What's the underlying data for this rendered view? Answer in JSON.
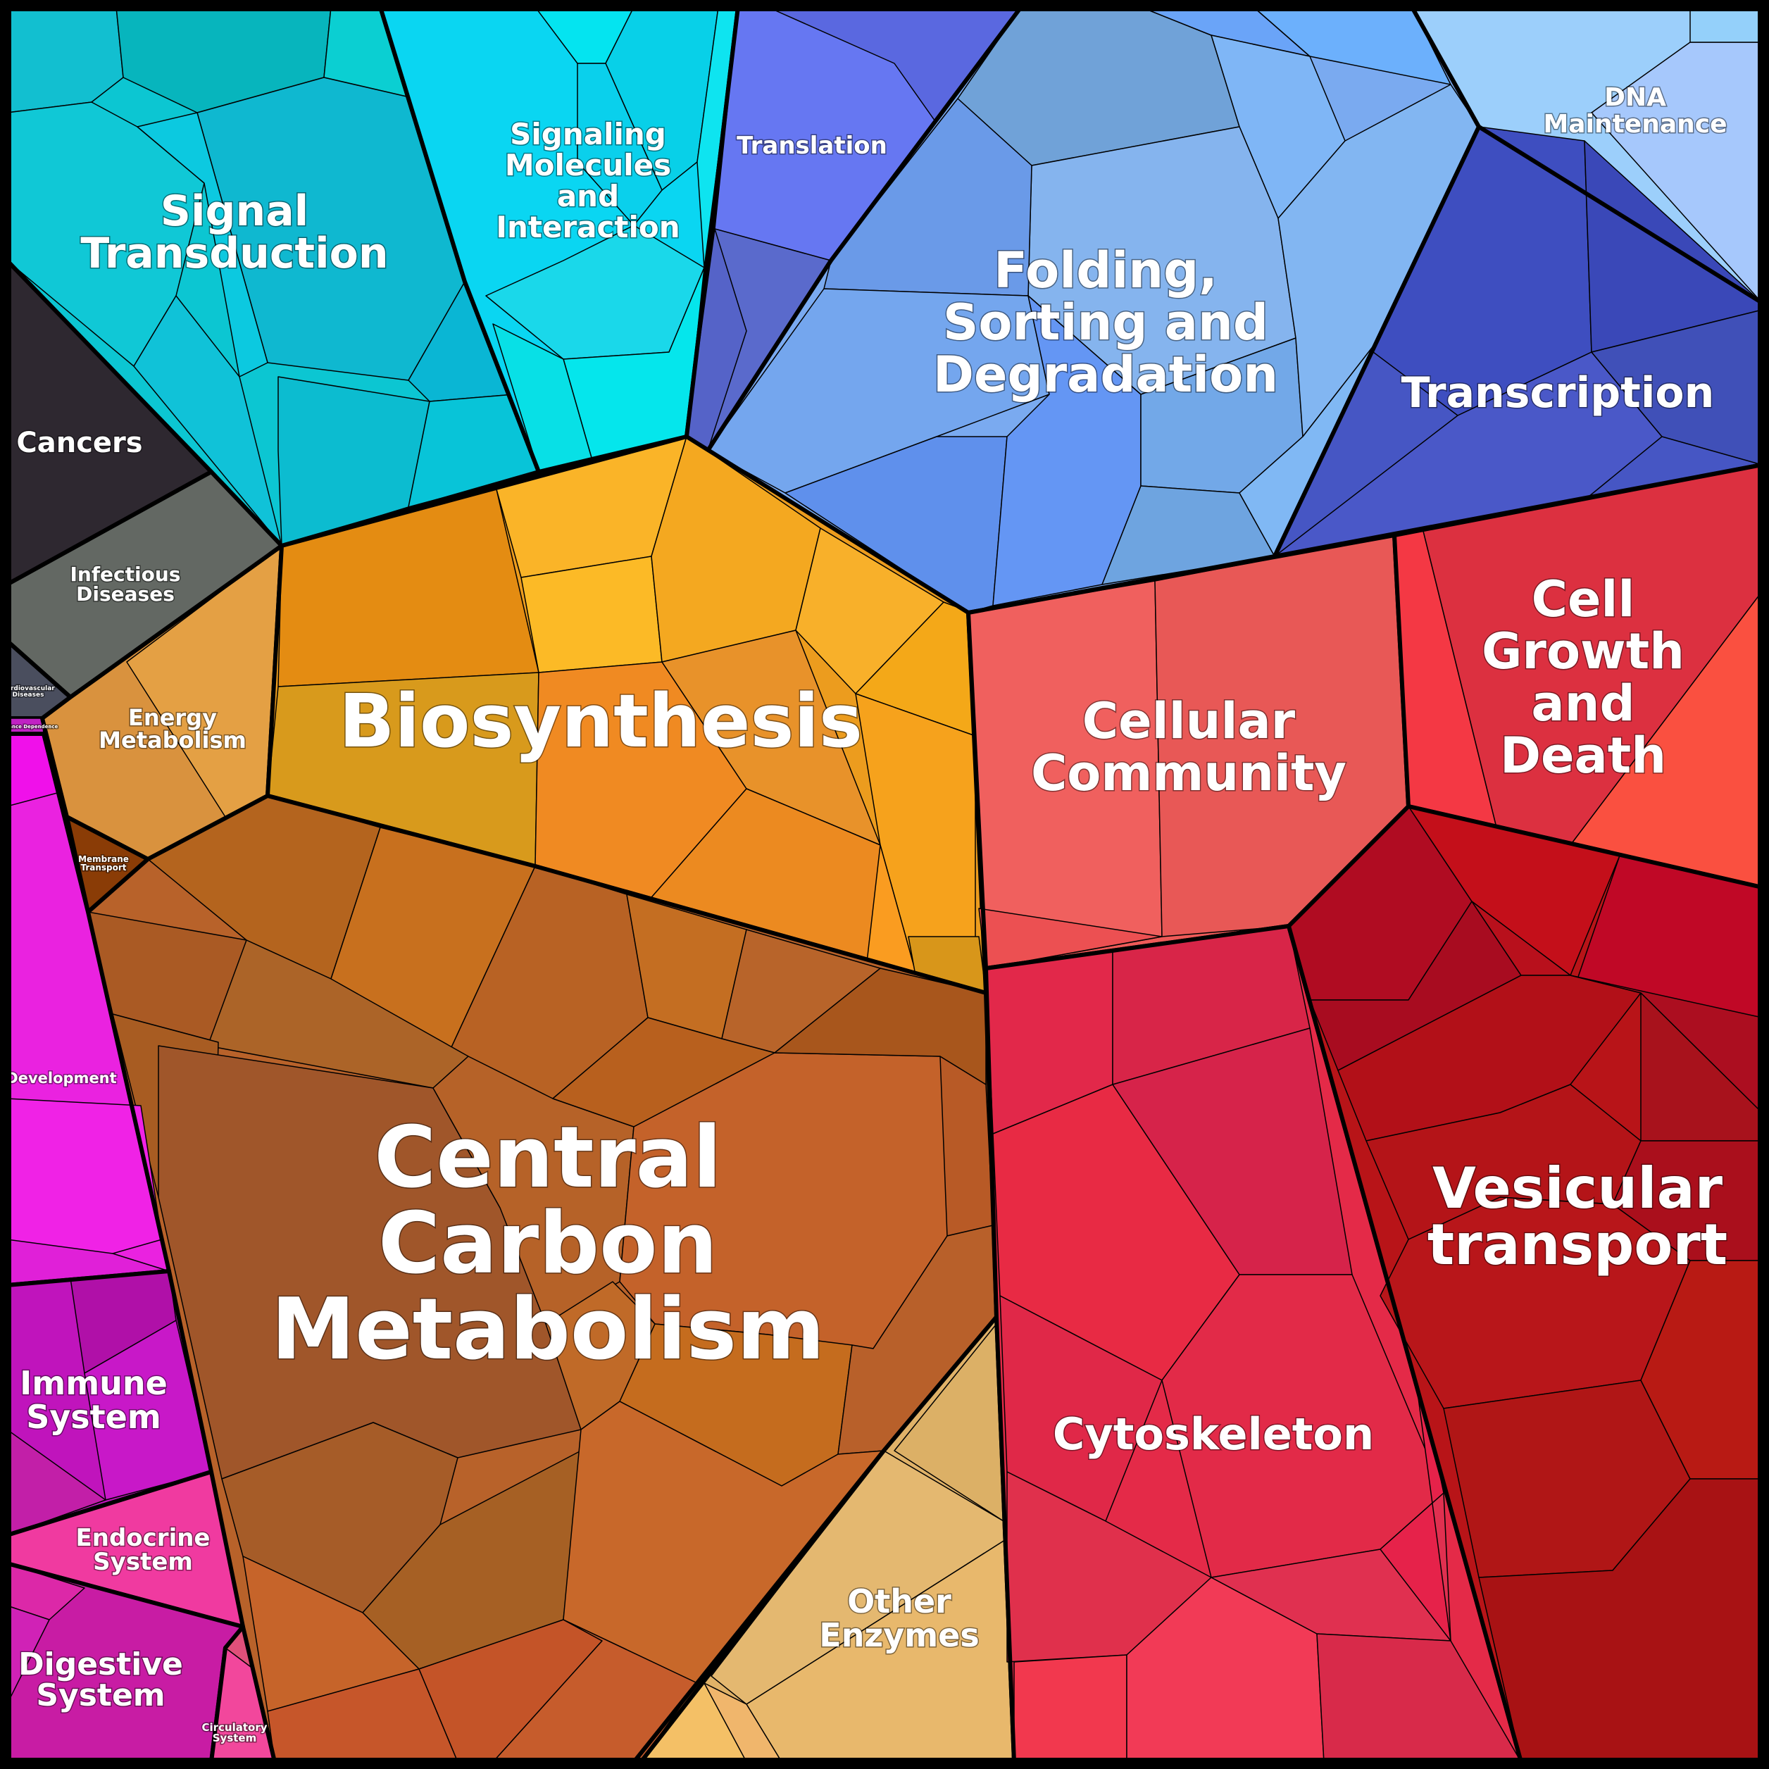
{
  "regions": [
    {
      "id": "signal-transduction",
      "lines": [
        "Signal",
        "Transduction"
      ],
      "color": "#0cc6d2"
    },
    {
      "id": "signaling-molecules",
      "lines": [
        "Signaling",
        "Molecules",
        "and",
        "Interaction"
      ],
      "color": "#0ad6f2"
    },
    {
      "id": "translation",
      "lines": [
        "Translation"
      ],
      "color": "#6677f2"
    },
    {
      "id": "folding",
      "lines": [
        "Folding,",
        "Sorting and",
        "Degradation"
      ],
      "color": "#7aaaf0"
    },
    {
      "id": "dna-maintenance",
      "lines": [
        "DNA",
        "Maintenance"
      ],
      "color": "#9ccffb"
    },
    {
      "id": "transcription",
      "lines": [
        "Transcription"
      ],
      "color": "#4656c4"
    },
    {
      "id": "cancers",
      "lines": [
        "Cancers"
      ],
      "color": "#2e2830"
    },
    {
      "id": "infectious-diseases",
      "lines": [
        "Infectious",
        "Diseases"
      ],
      "color": "#636863"
    },
    {
      "id": "cardiovascular-diseases",
      "lines": [
        "Cardiovascular",
        "Diseases"
      ],
      "color": "#4a4e5e"
    },
    {
      "id": "substance-dependence",
      "lines": [
        "Substance Dependence"
      ],
      "color": "#c022c4"
    },
    {
      "id": "energy-metabolism",
      "lines": [
        "Energy",
        "Metabolism"
      ],
      "color": "#d9923e"
    },
    {
      "id": "membrane-transport",
      "lines": [
        "Membrane",
        "Transport"
      ],
      "color": "#8a3c06"
    },
    {
      "id": "biosynthesis",
      "lines": [
        "Biosynthesis"
      ],
      "color": "#ec9c1e"
    },
    {
      "id": "central-carbon-metabolism",
      "lines": [
        "Central",
        "Carbon",
        "Metabolism"
      ],
      "color": "#b8622a"
    },
    {
      "id": "other-enzymes",
      "lines": [
        "Other",
        "Enzymes"
      ],
      "color": "#e0b268"
    },
    {
      "id": "development",
      "lines": [
        "Development"
      ],
      "color": "#ea22e0"
    },
    {
      "id": "immune-system",
      "lines": [
        "Immune",
        "System"
      ],
      "color": "#c014bc"
    },
    {
      "id": "endocrine-system",
      "lines": [
        "Endocrine",
        "System"
      ],
      "color": "#f03aa0"
    },
    {
      "id": "digestive-system",
      "lines": [
        "Digestive",
        "System"
      ],
      "color": "#c81ca4"
    },
    {
      "id": "circulatory-system",
      "lines": [
        "Circulatory",
        "System"
      ],
      "color": "#f2479c"
    },
    {
      "id": "cellular-community",
      "lines": [
        "Cellular",
        "Community"
      ],
      "color": "#ee5a58"
    },
    {
      "id": "cell-growth-and-death",
      "lines": [
        "Cell",
        "Growth",
        "and",
        "Death"
      ],
      "color": "#ea3a46"
    },
    {
      "id": "cytoskeleton",
      "lines": [
        "Cytoskeleton"
      ],
      "color": "#e42a48"
    },
    {
      "id": "vesicular-transport",
      "lines": [
        "Vesicular",
        "transport"
      ],
      "color": "#b81418"
    }
  ]
}
